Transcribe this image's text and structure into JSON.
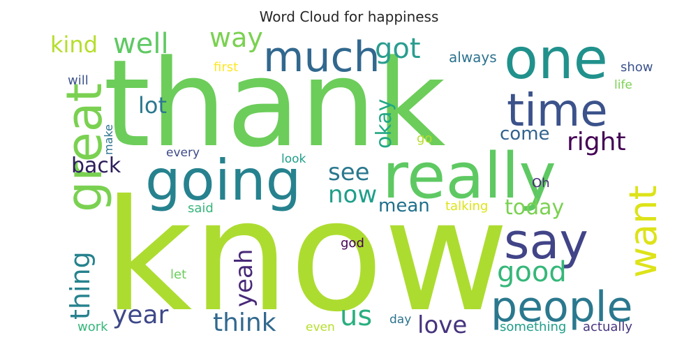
{
  "chart_data": {
    "type": "wordcloud",
    "title": "Word Cloud for happiness",
    "words": [
      {
        "text": "know",
        "rank": 1,
        "color": "#addc30",
        "orientation": "horizontal"
      },
      {
        "text": "thank",
        "rank": 2,
        "color": "#6ccd5a",
        "orientation": "horizontal"
      },
      {
        "text": "really",
        "rank": 3,
        "color": "#5ec962",
        "orientation": "horizontal"
      },
      {
        "text": "going",
        "rank": 4,
        "color": "#26828e",
        "orientation": "horizontal"
      },
      {
        "text": "one",
        "rank": 5,
        "color": "#21918c",
        "orientation": "horizontal"
      },
      {
        "text": "great",
        "rank": 6,
        "color": "#7ad151",
        "orientation": "vertical"
      },
      {
        "text": "much",
        "rank": 7,
        "color": "#31688e",
        "orientation": "horizontal"
      },
      {
        "text": "time",
        "rank": 8,
        "color": "#3b528b",
        "orientation": "horizontal"
      },
      {
        "text": "say",
        "rank": 9,
        "color": "#414487",
        "orientation": "horizontal"
      },
      {
        "text": "people",
        "rank": 10,
        "color": "#2a788e",
        "orientation": "horizontal"
      },
      {
        "text": "want",
        "rank": 11,
        "color": "#dde318",
        "orientation": "vertical"
      },
      {
        "text": "well",
        "rank": 12,
        "color": "#5ec962",
        "orientation": "horizontal"
      },
      {
        "text": "way",
        "rank": 13,
        "color": "#7ad151",
        "orientation": "horizontal"
      },
      {
        "text": "got",
        "rank": 14,
        "color": "#2a9d8f",
        "orientation": "horizontal"
      },
      {
        "text": "kind",
        "rank": 15,
        "color": "#b5de2b",
        "orientation": "horizontal"
      },
      {
        "text": "lot",
        "rank": 16,
        "color": "#2a788e",
        "orientation": "horizontal"
      },
      {
        "text": "okay",
        "rank": 17,
        "color": "#22a884",
        "orientation": "vertical"
      },
      {
        "text": "come",
        "rank": 18,
        "color": "#33638d",
        "orientation": "horizontal"
      },
      {
        "text": "right",
        "rank": 19,
        "color": "#440154",
        "orientation": "horizontal"
      },
      {
        "text": "back",
        "rank": 20,
        "color": "#2d1e5c",
        "orientation": "horizontal"
      },
      {
        "text": "see",
        "rank": 21,
        "color": "#2a788e",
        "orientation": "horizontal"
      },
      {
        "text": "now",
        "rank": 22,
        "color": "#1f9e89",
        "orientation": "horizontal"
      },
      {
        "text": "mean",
        "rank": 23,
        "color": "#1f6f8b",
        "orientation": "horizontal"
      },
      {
        "text": "today",
        "rank": 24,
        "color": "#7ad151",
        "orientation": "horizontal"
      },
      {
        "text": "thing",
        "rank": 25,
        "color": "#26828e",
        "orientation": "vertical"
      },
      {
        "text": "yeah",
        "rank": 26,
        "color": "#482878",
        "orientation": "vertical"
      },
      {
        "text": "good",
        "rank": 27,
        "color": "#35b779",
        "orientation": "horizontal"
      },
      {
        "text": "year",
        "rank": 28,
        "color": "#3e4989",
        "orientation": "horizontal"
      },
      {
        "text": "think",
        "rank": 29,
        "color": "#31688e",
        "orientation": "horizontal"
      },
      {
        "text": "us",
        "rank": 30,
        "color": "#29af7f",
        "orientation": "horizontal"
      },
      {
        "text": "love",
        "rank": 31,
        "color": "#46337e",
        "orientation": "horizontal"
      },
      {
        "text": "always",
        "rank": 32,
        "color": "#2c728e",
        "orientation": "horizontal"
      },
      {
        "text": "first",
        "rank": 33,
        "color": "#fde725",
        "orientation": "horizontal"
      },
      {
        "text": "will",
        "rank": 34,
        "color": "#3b528b",
        "orientation": "horizontal"
      },
      {
        "text": "show",
        "rank": 35,
        "color": "#3b528b",
        "orientation": "horizontal"
      },
      {
        "text": "life",
        "rank": 36,
        "color": "#7ad151",
        "orientation": "horizontal"
      },
      {
        "text": "make",
        "rank": 37,
        "color": "#2c728e",
        "orientation": "vertical"
      },
      {
        "text": "go",
        "rank": 38,
        "color": "#b5de2b",
        "orientation": "horizontal"
      },
      {
        "text": "every",
        "rank": 39,
        "color": "#3e4989",
        "orientation": "horizontal"
      },
      {
        "text": "look",
        "rank": 40,
        "color": "#1f9e89",
        "orientation": "horizontal"
      },
      {
        "text": "Oh",
        "rank": 41,
        "color": "#482878",
        "orientation": "horizontal"
      },
      {
        "text": "said",
        "rank": 42,
        "color": "#35b779",
        "orientation": "horizontal"
      },
      {
        "text": "talking",
        "rank": 43,
        "color": "#dde318",
        "orientation": "horizontal"
      },
      {
        "text": "god",
        "rank": 44,
        "color": "#440154",
        "orientation": "horizontal"
      },
      {
        "text": "let",
        "rank": 45,
        "color": "#6ccd5a",
        "orientation": "horizontal"
      },
      {
        "text": "work",
        "rank": 46,
        "color": "#35b779",
        "orientation": "horizontal"
      },
      {
        "text": "even",
        "rank": 47,
        "color": "#b5de2b",
        "orientation": "horizontal"
      },
      {
        "text": "day",
        "rank": 48,
        "color": "#2c728e",
        "orientation": "horizontal"
      },
      {
        "text": "something",
        "rank": 49,
        "color": "#1f9e89",
        "orientation": "horizontal"
      },
      {
        "text": "actually",
        "rank": 50,
        "color": "#46337e",
        "orientation": "horizontal"
      }
    ]
  }
}
